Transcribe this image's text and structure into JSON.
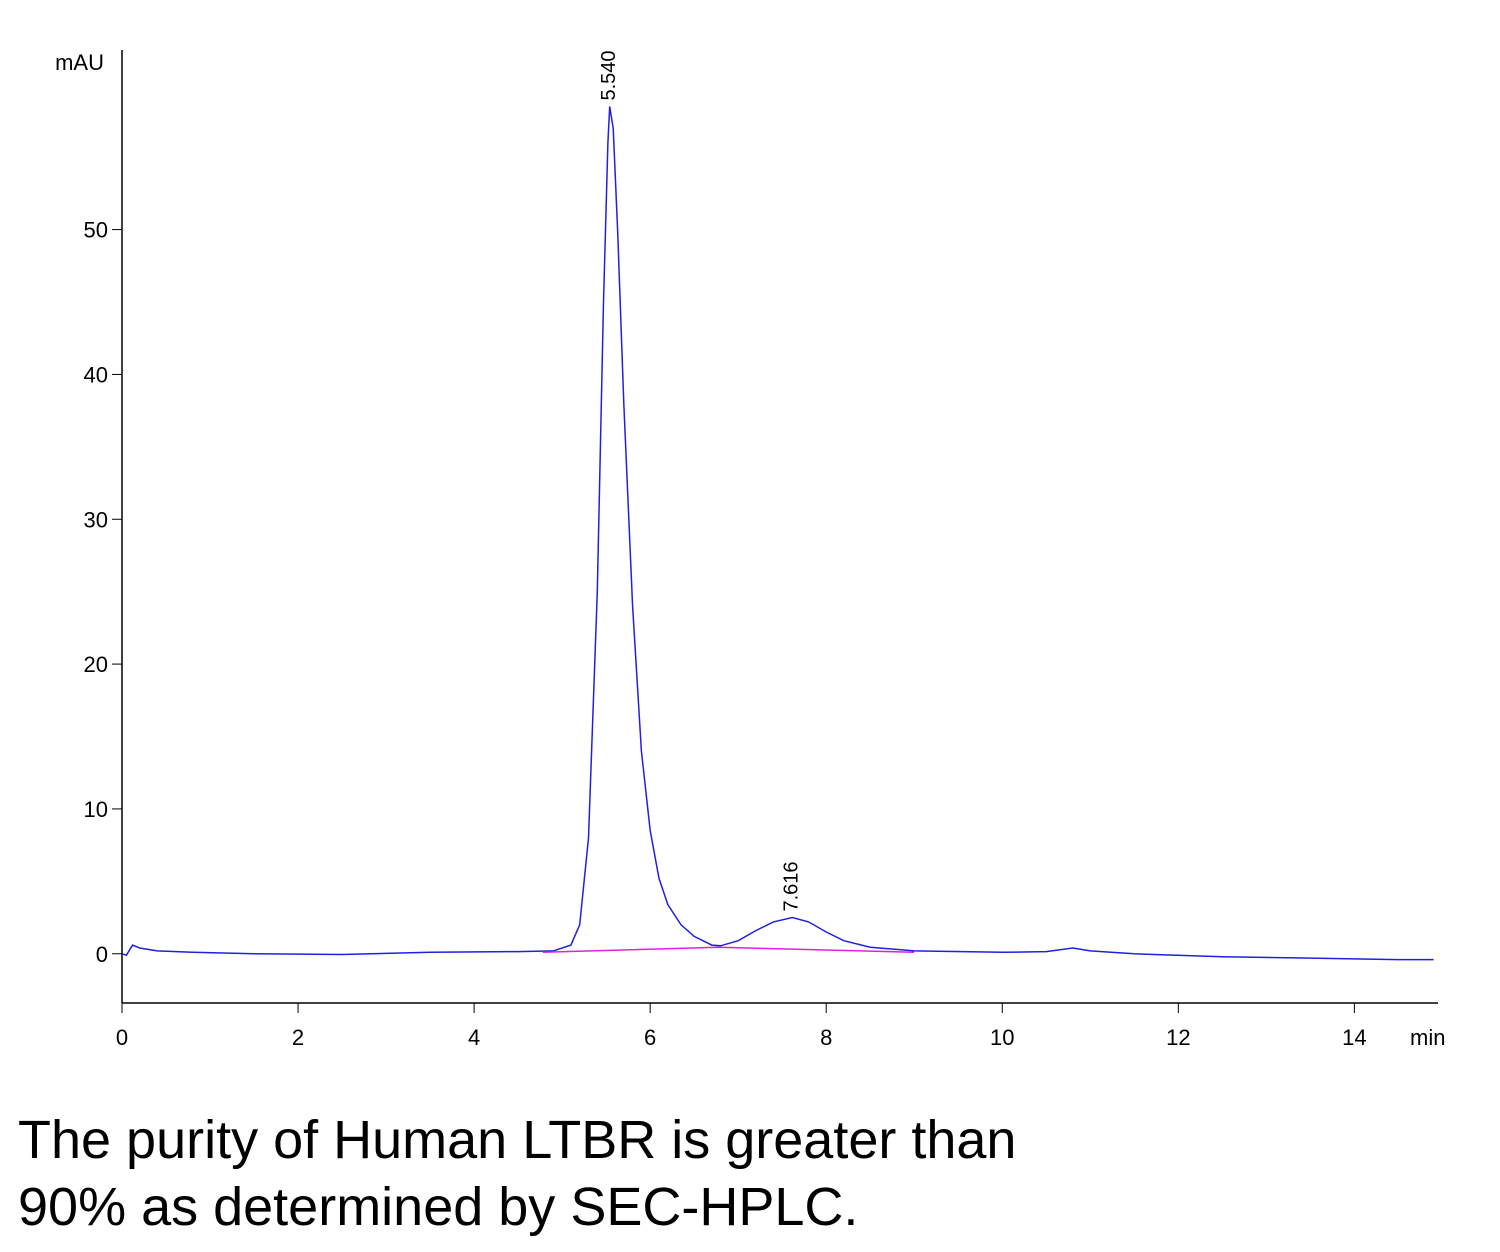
{
  "chart_data": {
    "type": "line",
    "ylabel": "mAU",
    "xlabel": "min",
    "xlim": [
      0,
      14.95
    ],
    "ylim": [
      -3.4,
      62.4
    ],
    "xticks": [
      0,
      2,
      4,
      6,
      8,
      10,
      12,
      14
    ],
    "yticks": [
      0,
      10,
      20,
      30,
      40,
      50
    ],
    "series": [
      {
        "color": "#2020e0",
        "x": [
          0,
          0.05,
          0.12,
          0.2,
          0.4,
          0.8,
          1.5,
          2.5,
          3.5,
          4.5,
          4.9,
          5.1,
          5.2,
          5.3,
          5.4,
          5.47,
          5.52,
          5.54,
          5.58,
          5.63,
          5.7,
          5.8,
          5.9,
          6.0,
          6.1,
          6.2,
          6.35,
          6.5,
          6.7,
          6.8,
          7.0,
          7.2,
          7.4,
          7.616,
          7.8,
          8.0,
          8.2,
          8.5,
          9.0,
          10.0,
          10.5,
          10.8,
          11.0,
          11.5,
          12.5,
          13.5,
          14.5,
          14.9
        ],
        "values": [
          0,
          -0.1,
          0.6,
          0.4,
          0.2,
          0.1,
          0,
          -0.05,
          0.1,
          0.15,
          0.2,
          0.6,
          2,
          8,
          25,
          45,
          56,
          58.5,
          57,
          50,
          38,
          24,
          14,
          8.5,
          5.2,
          3.4,
          2,
          1.2,
          0.6,
          0.55,
          0.9,
          1.6,
          2.2,
          2.5,
          2.2,
          1.5,
          0.9,
          0.45,
          0.2,
          0.1,
          0.15,
          0.4,
          0.2,
          0,
          -0.2,
          -0.3,
          -0.4,
          -0.4
        ]
      },
      {
        "color": "#e020e0",
        "x": [
          4.78,
          6.77,
          9.0
        ],
        "values": [
          0.1,
          0.45,
          0.1
        ]
      }
    ],
    "annotations": [
      {
        "label": "5.540",
        "x": 5.54,
        "y": 58.5
      },
      {
        "label": "7.616",
        "x": 7.616,
        "y": 2.5
      }
    ]
  },
  "caption": [
    "The purity of Human LTBR is greater than",
    "90% as determined by SEC-HPLC."
  ]
}
